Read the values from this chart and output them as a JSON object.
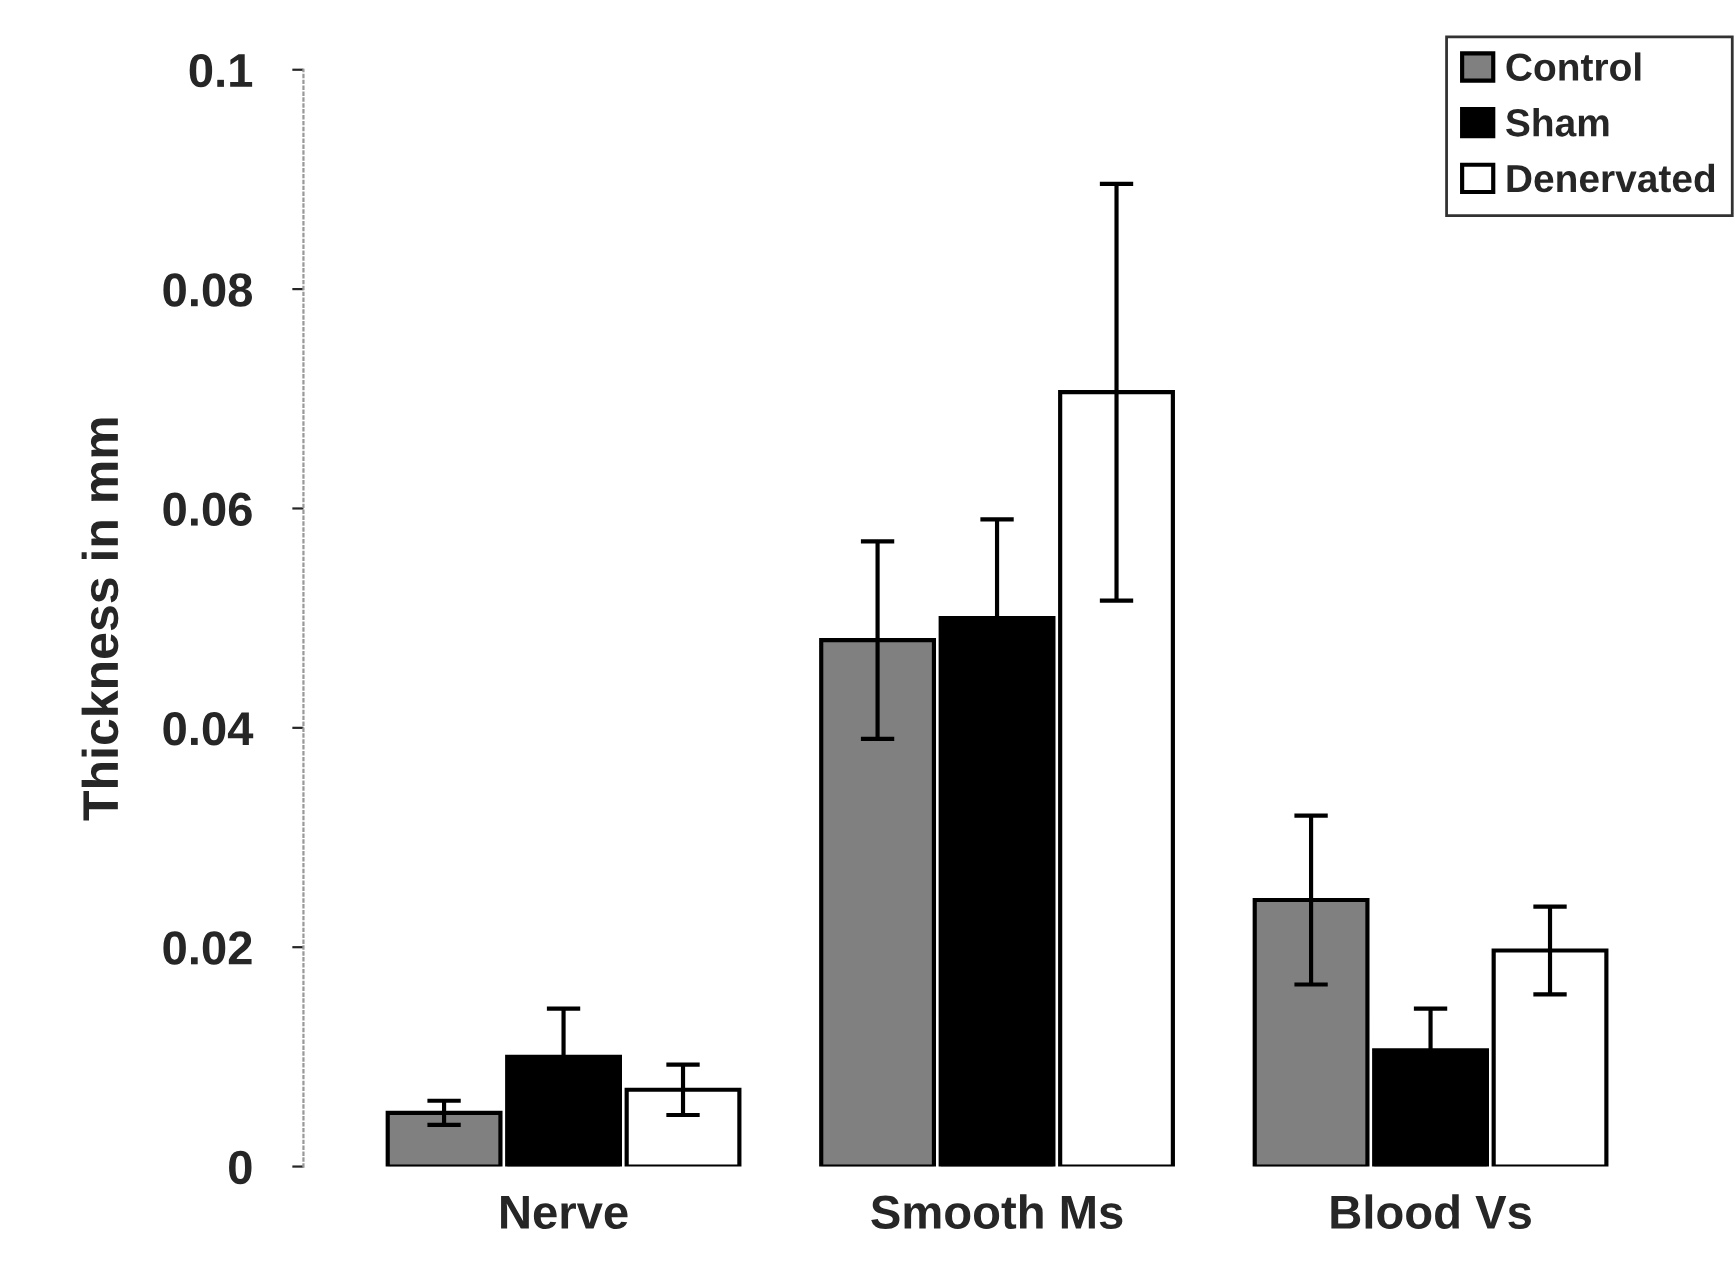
{
  "chart_data": {
    "type": "bar",
    "ylabel": "Thickness in mm",
    "categories": [
      "Nerve",
      "Smooth Ms",
      "Blood Vs"
    ],
    "series": [
      {
        "name": "Control",
        "color": "#808080",
        "values": [
          0.0049,
          0.048,
          0.0243
        ],
        "errors": [
          0.0011,
          0.009,
          0.0077
        ]
      },
      {
        "name": "Sham",
        "color": "#000000",
        "values": [
          0.01,
          0.05,
          0.0106
        ],
        "errors": [
          0.0044,
          0.009,
          0.0038
        ]
      },
      {
        "name": "Denervated",
        "color": "#ffffff",
        "values": [
          0.007,
          0.0706,
          0.0197
        ],
        "errors": [
          0.0023,
          0.019,
          0.004
        ]
      }
    ],
    "ylim": [
      0,
      0.1
    ],
    "yticks": [
      0,
      0.02,
      0.04,
      0.06,
      0.08,
      0.1
    ],
    "grid": false,
    "legend": "top right"
  }
}
